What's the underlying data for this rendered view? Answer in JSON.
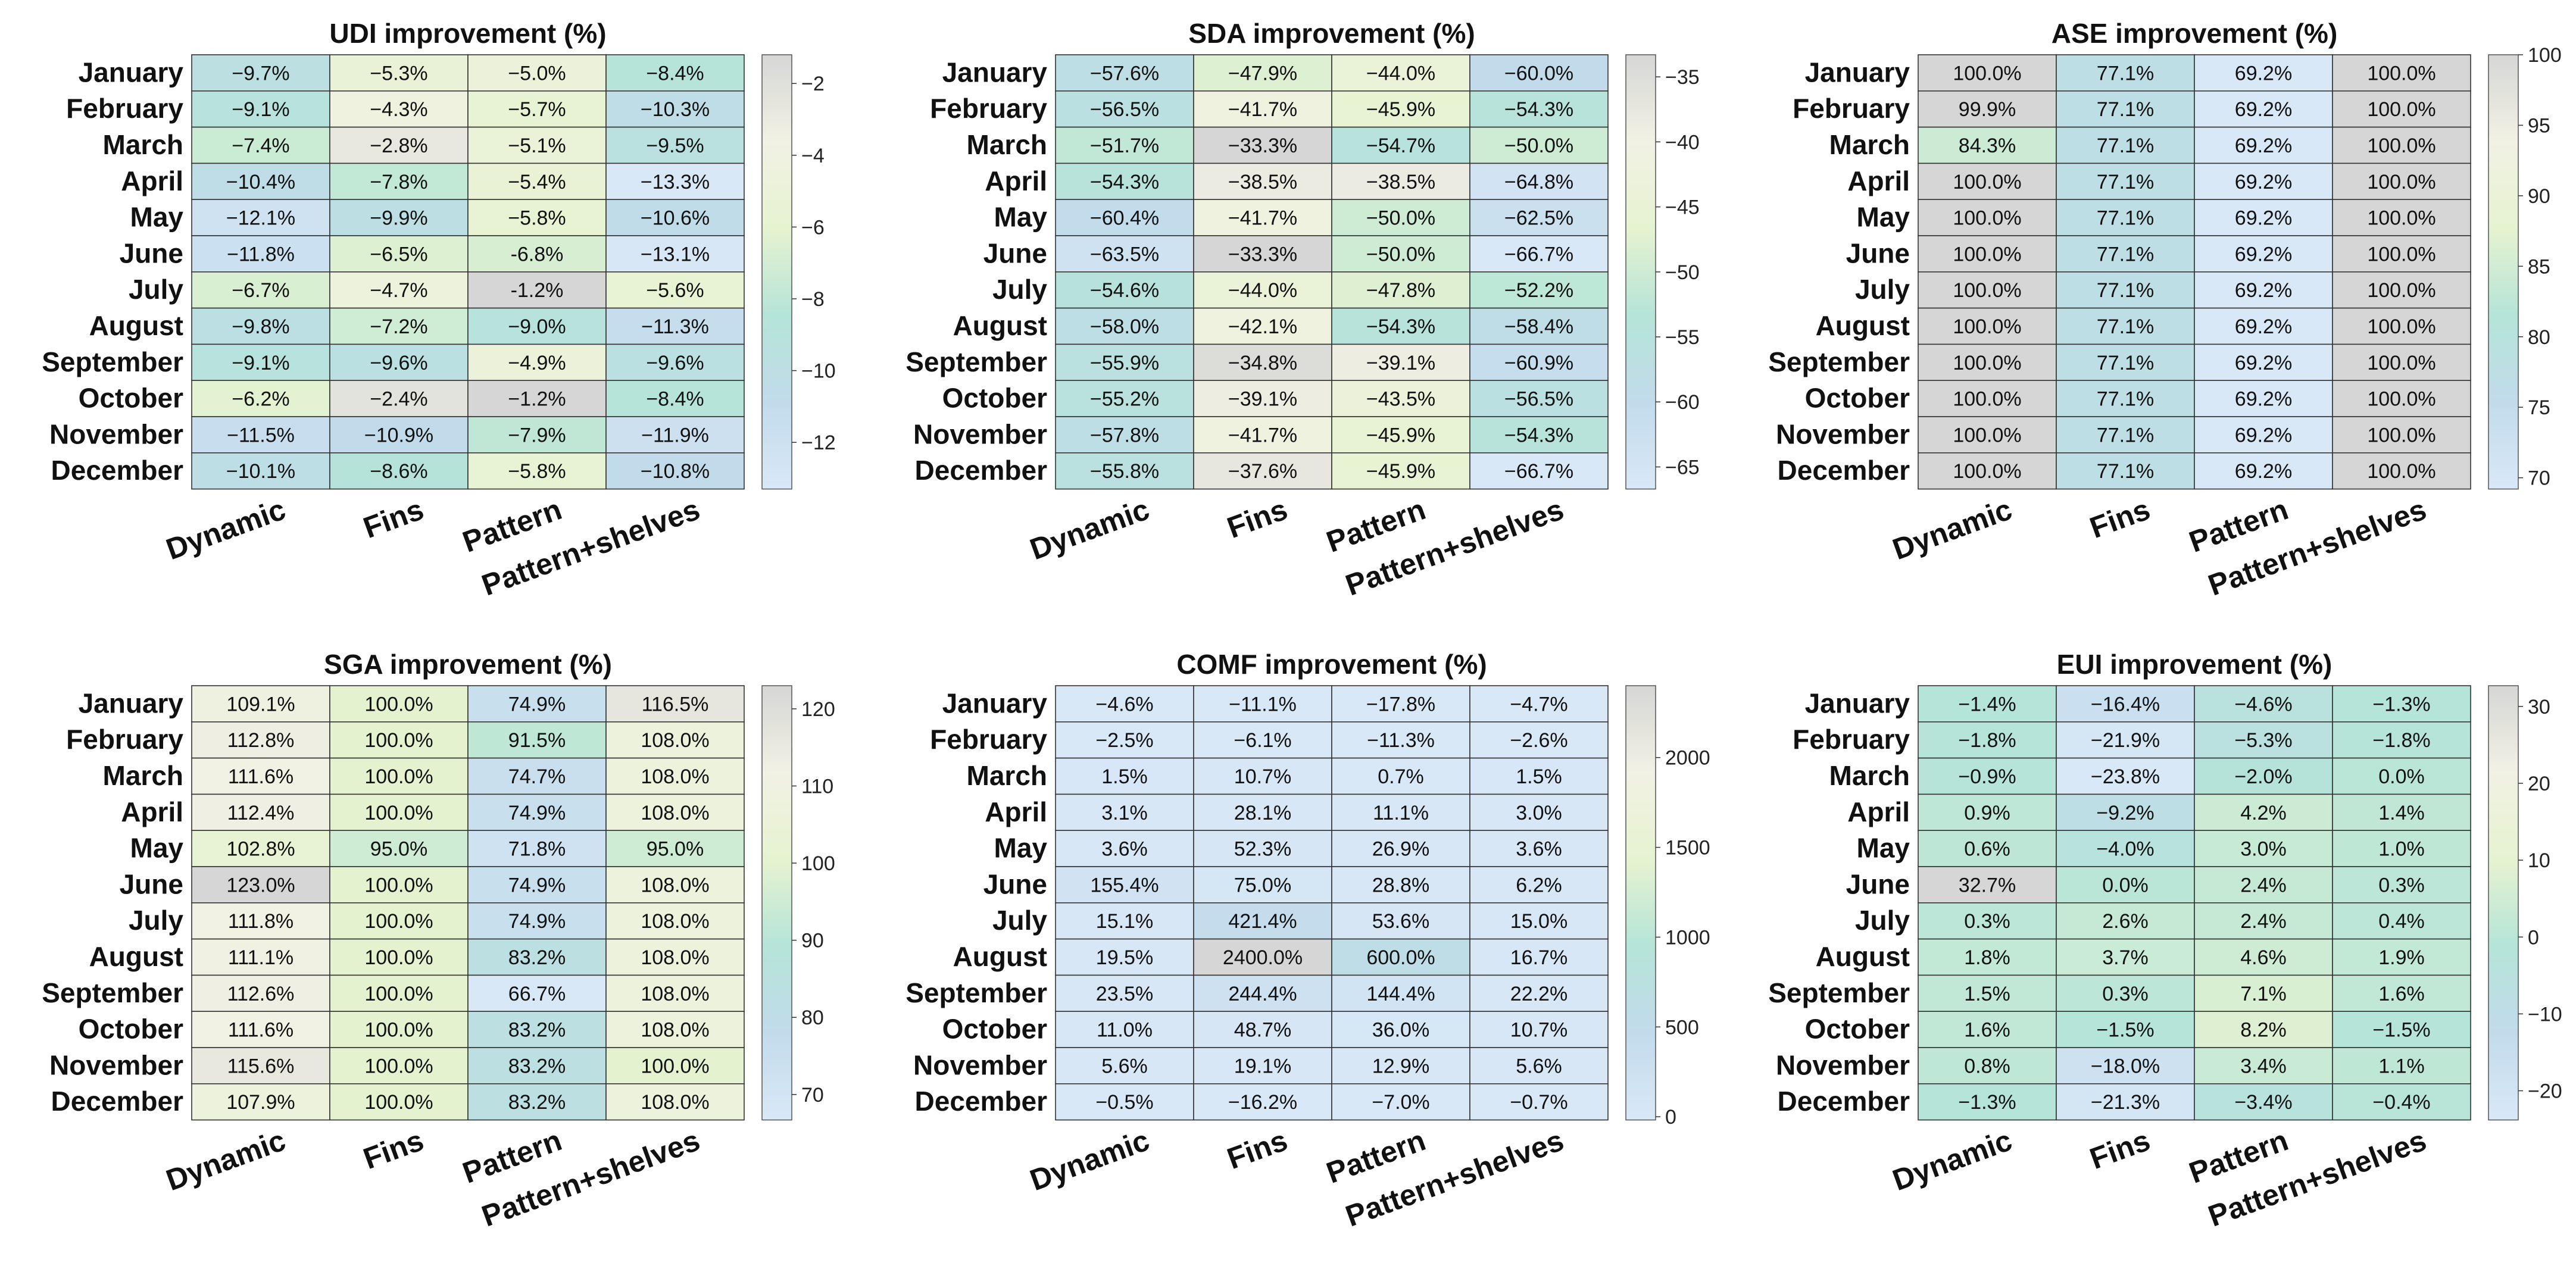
{
  "chart_data": [
    {
      "type": "heatmap",
      "title": "UDI improvement (%)",
      "rows": [
        "January",
        "February",
        "March",
        "April",
        "May",
        "June",
        "July",
        "August",
        "September",
        "October",
        "November",
        "December"
      ],
      "columns": [
        "Dynamic",
        "Fins",
        "Pattern",
        "Pattern+shelves"
      ],
      "values": [
        [
          -9.7,
          -5.3,
          -5.0,
          -8.4
        ],
        [
          -9.1,
          -4.3,
          -5.7,
          -10.3
        ],
        [
          -7.4,
          -2.8,
          -5.1,
          -9.5
        ],
        [
          -10.4,
          -7.8,
          -5.4,
          -13.3
        ],
        [
          -12.1,
          -9.9,
          -5.8,
          -10.6
        ],
        [
          -11.8,
          -6.5,
          -6.8,
          -13.1
        ],
        [
          -6.7,
          -4.7,
          -1.2,
          -5.6
        ],
        [
          -9.8,
          -7.2,
          -9.0,
          -11.3
        ],
        [
          -9.1,
          -9.6,
          -4.9,
          -9.6
        ],
        [
          -6.2,
          -2.4,
          -1.2,
          -8.4
        ],
        [
          -11.5,
          -10.9,
          -7.9,
          -11.9
        ],
        [
          -10.1,
          -8.6,
          -5.8,
          -10.8
        ]
      ],
      "labels": [
        [
          "−9.7%",
          "−5.3%",
          "−5.0%",
          "−8.4%"
        ],
        [
          "−9.1%",
          "−4.3%",
          "−5.7%",
          "−10.3%"
        ],
        [
          "−7.4%",
          "−2.8%",
          "−5.1%",
          "−9.5%"
        ],
        [
          "−10.4%",
          "−7.8%",
          "−5.4%",
          "−13.3%"
        ],
        [
          "−12.1%",
          "−9.9%",
          "−5.8%",
          "−10.6%"
        ],
        [
          "−11.8%",
          "−6.5%",
          "-6.8%",
          "−13.1%"
        ],
        [
          "−6.7%",
          "−4.7%",
          "-1.2%",
          "−5.6%"
        ],
        [
          "−9.8%",
          "−7.2%",
          "−9.0%",
          "−11.3%"
        ],
        [
          "−9.1%",
          "−9.6%",
          "−4.9%",
          "−9.6%"
        ],
        [
          "−6.2%",
          "−2.4%",
          "−1.2%",
          "−8.4%"
        ],
        [
          "−11.5%",
          "−10.9%",
          "−7.9%",
          "−11.9%"
        ],
        [
          "−10.1%",
          "−8.6%",
          "−5.8%",
          "−10.8%"
        ]
      ],
      "colorbar": {
        "range": [
          -13.3,
          -1.2
        ],
        "ticks": [
          -2,
          -4,
          -6,
          -8,
          -10,
          -12
        ],
        "tick_labels": [
          "−2",
          "−4",
          "−6",
          "−8",
          "−10",
          "−12"
        ]
      }
    },
    {
      "type": "heatmap",
      "title": "SDA improvement (%)",
      "rows": [
        "January",
        "February",
        "March",
        "April",
        "May",
        "June",
        "July",
        "August",
        "September",
        "October",
        "November",
        "December"
      ],
      "columns": [
        "Dynamic",
        "Fins",
        "Pattern",
        "Pattern+shelves"
      ],
      "values": [
        [
          -57.6,
          -47.9,
          -44.0,
          -60.0
        ],
        [
          -56.5,
          -41.7,
          -45.9,
          -54.3
        ],
        [
          -51.7,
          -33.3,
          -54.7,
          -50.0
        ],
        [
          -54.3,
          -38.5,
          -38.5,
          -64.8
        ],
        [
          -60.4,
          -41.7,
          -50.0,
          -62.5
        ],
        [
          -63.5,
          -33.3,
          -50.0,
          -66.7
        ],
        [
          -54.6,
          -44.0,
          -47.8,
          -52.2
        ],
        [
          -58.0,
          -42.1,
          -54.3,
          -58.4
        ],
        [
          -55.9,
          -34.8,
          -39.1,
          -60.9
        ],
        [
          -55.2,
          -39.1,
          -43.5,
          -56.5
        ],
        [
          -57.8,
          -41.7,
          -45.9,
          -54.3
        ],
        [
          -55.8,
          -37.6,
          -45.9,
          -66.7
        ]
      ],
      "labels": [
        [
          "−57.6%",
          "−47.9%",
          "−44.0%",
          "−60.0%"
        ],
        [
          "−56.5%",
          "−41.7%",
          "−45.9%",
          "−54.3%"
        ],
        [
          "−51.7%",
          "−33.3%",
          "−54.7%",
          "−50.0%"
        ],
        [
          "−54.3%",
          "−38.5%",
          "−38.5%",
          "−64.8%"
        ],
        [
          "−60.4%",
          "−41.7%",
          "−50.0%",
          "−62.5%"
        ],
        [
          "−63.5%",
          "−33.3%",
          "−50.0%",
          "−66.7%"
        ],
        [
          "−54.6%",
          "−44.0%",
          "−47.8%",
          "−52.2%"
        ],
        [
          "−58.0%",
          "−42.1%",
          "−54.3%",
          "−58.4%"
        ],
        [
          "−55.9%",
          "−34.8%",
          "−39.1%",
          "−60.9%"
        ],
        [
          "−55.2%",
          "−39.1%",
          "−43.5%",
          "−56.5%"
        ],
        [
          "−57.8%",
          "−41.7%",
          "−45.9%",
          "−54.3%"
        ],
        [
          "−55.8%",
          "−37.6%",
          "−45.9%",
          "−66.7%"
        ]
      ],
      "colorbar": {
        "range": [
          -66.7,
          -33.3
        ],
        "ticks": [
          -35,
          -40,
          -45,
          -50,
          -55,
          -60,
          -65
        ],
        "tick_labels": [
          "−35",
          "−40",
          "−45",
          "−50",
          "−55",
          "−60",
          "−65"
        ]
      }
    },
    {
      "type": "heatmap",
      "title": "ASE improvement (%)",
      "rows": [
        "January",
        "February",
        "March",
        "April",
        "May",
        "June",
        "July",
        "August",
        "September",
        "October",
        "November",
        "December"
      ],
      "columns": [
        "Dynamic",
        "Fins",
        "Pattern",
        "Pattern+shelves"
      ],
      "values": [
        [
          100.0,
          77.1,
          69.2,
          100.0
        ],
        [
          99.9,
          77.1,
          69.2,
          100.0
        ],
        [
          84.3,
          77.1,
          69.2,
          100.0
        ],
        [
          100.0,
          77.1,
          69.2,
          100.0
        ],
        [
          100.0,
          77.1,
          69.2,
          100.0
        ],
        [
          100.0,
          77.1,
          69.2,
          100.0
        ],
        [
          100.0,
          77.1,
          69.2,
          100.0
        ],
        [
          100.0,
          77.1,
          69.2,
          100.0
        ],
        [
          100.0,
          77.1,
          69.2,
          100.0
        ],
        [
          100.0,
          77.1,
          69.2,
          100.0
        ],
        [
          100.0,
          77.1,
          69.2,
          100.0
        ],
        [
          100.0,
          77.1,
          69.2,
          100.0
        ]
      ],
      "labels": [
        [
          "100.0%",
          "77.1%",
          "69.2%",
          "100.0%"
        ],
        [
          "99.9%",
          "77.1%",
          "69.2%",
          "100.0%"
        ],
        [
          "84.3%",
          "77.1%",
          "69.2%",
          "100.0%"
        ],
        [
          "100.0%",
          "77.1%",
          "69.2%",
          "100.0%"
        ],
        [
          "100.0%",
          "77.1%",
          "69.2%",
          "100.0%"
        ],
        [
          "100.0%",
          "77.1%",
          "69.2%",
          "100.0%"
        ],
        [
          "100.0%",
          "77.1%",
          "69.2%",
          "100.0%"
        ],
        [
          "100.0%",
          "77.1%",
          "69.2%",
          "100.0%"
        ],
        [
          "100.0%",
          "77.1%",
          "69.2%",
          "100.0%"
        ],
        [
          "100.0%",
          "77.1%",
          "69.2%",
          "100.0%"
        ],
        [
          "100.0%",
          "77.1%",
          "69.2%",
          "100.0%"
        ],
        [
          "100.0%",
          "77.1%",
          "69.2%",
          "100.0%"
        ]
      ],
      "colorbar": {
        "range": [
          69.2,
          100.0
        ],
        "ticks": [
          100,
          95,
          90,
          85,
          80,
          75,
          70
        ],
        "tick_labels": [
          "100",
          "95",
          "90",
          "85",
          "80",
          "75",
          "70"
        ]
      }
    },
    {
      "type": "heatmap",
      "title": "SGA improvement (%)",
      "rows": [
        "January",
        "February",
        "March",
        "April",
        "May",
        "June",
        "July",
        "August",
        "September",
        "October",
        "November",
        "December"
      ],
      "columns": [
        "Dynamic",
        "Fins",
        "Pattern",
        "Pattern+shelves"
      ],
      "values": [
        [
          109.1,
          100.0,
          74.9,
          116.5
        ],
        [
          112.8,
          100.0,
          91.5,
          108.0
        ],
        [
          111.6,
          100.0,
          74.7,
          108.0
        ],
        [
          112.4,
          100.0,
          74.9,
          108.0
        ],
        [
          102.8,
          95.0,
          71.8,
          95.0
        ],
        [
          123.0,
          100.0,
          74.9,
          108.0
        ],
        [
          111.8,
          100.0,
          74.9,
          108.0
        ],
        [
          111.1,
          100.0,
          83.2,
          108.0
        ],
        [
          112.6,
          100.0,
          66.7,
          108.0
        ],
        [
          111.6,
          100.0,
          83.2,
          108.0
        ],
        [
          115.6,
          100.0,
          83.2,
          100.0
        ],
        [
          107.9,
          100.0,
          83.2,
          108.0
        ]
      ],
      "labels": [
        [
          "109.1%",
          "100.0%",
          "74.9%",
          "116.5%"
        ],
        [
          "112.8%",
          "100.0%",
          "91.5%",
          "108.0%"
        ],
        [
          "111.6%",
          "100.0%",
          "74.7%",
          "108.0%"
        ],
        [
          "112.4%",
          "100.0%",
          "74.9%",
          "108.0%"
        ],
        [
          "102.8%",
          "95.0%",
          "71.8%",
          "95.0%"
        ],
        [
          "123.0%",
          "100.0%",
          "74.9%",
          "108.0%"
        ],
        [
          "111.8%",
          "100.0%",
          "74.9%",
          "108.0%"
        ],
        [
          "111.1%",
          "100.0%",
          "83.2%",
          "108.0%"
        ],
        [
          "112.6%",
          "100.0%",
          "66.7%",
          "108.0%"
        ],
        [
          "111.6%",
          "100.0%",
          "83.2%",
          "108.0%"
        ],
        [
          "115.6%",
          "100.0%",
          "83.2%",
          "100.0%"
        ],
        [
          "107.9%",
          "100.0%",
          "83.2%",
          "108.0%"
        ]
      ],
      "colorbar": {
        "range": [
          66.7,
          123.0
        ],
        "ticks": [
          120,
          110,
          100,
          90,
          80,
          70
        ],
        "tick_labels": [
          "120",
          "110",
          "100",
          "90",
          "80",
          "70"
        ]
      }
    },
    {
      "type": "heatmap",
      "title": "COMF improvement (%)",
      "rows": [
        "January",
        "February",
        "March",
        "April",
        "May",
        "June",
        "July",
        "August",
        "September",
        "October",
        "November",
        "December"
      ],
      "columns": [
        "Dynamic",
        "Fins",
        "Pattern",
        "Pattern+shelves"
      ],
      "values": [
        [
          -4.6,
          -11.1,
          -17.8,
          -4.7
        ],
        [
          -2.5,
          -6.1,
          -11.3,
          -2.6
        ],
        [
          1.5,
          10.7,
          0.7,
          1.5
        ],
        [
          3.1,
          28.1,
          11.1,
          3.0
        ],
        [
          3.6,
          52.3,
          26.9,
          3.6
        ],
        [
          155.4,
          75.0,
          28.8,
          6.2
        ],
        [
          15.1,
          421.4,
          53.6,
          15.0
        ],
        [
          19.5,
          2400.0,
          600.0,
          16.7
        ],
        [
          23.5,
          244.4,
          144.4,
          22.2
        ],
        [
          11.0,
          48.7,
          36.0,
          10.7
        ],
        [
          5.6,
          19.1,
          12.9,
          5.6
        ],
        [
          -0.5,
          -16.2,
          -7.0,
          -0.7
        ]
      ],
      "labels": [
        [
          "−4.6%",
          "−11.1%",
          "−17.8%",
          "−4.7%"
        ],
        [
          "−2.5%",
          "−6.1%",
          "−11.3%",
          "−2.6%"
        ],
        [
          "1.5%",
          "10.7%",
          "0.7%",
          "1.5%"
        ],
        [
          "3.1%",
          "28.1%",
          "11.1%",
          "3.0%"
        ],
        [
          "3.6%",
          "52.3%",
          "26.9%",
          "3.6%"
        ],
        [
          "155.4%",
          "75.0%",
          "28.8%",
          "6.2%"
        ],
        [
          "15.1%",
          "421.4%",
          "53.6%",
          "15.0%"
        ],
        [
          "19.5%",
          "2400.0%",
          "600.0%",
          "16.7%"
        ],
        [
          "23.5%",
          "244.4%",
          "144.4%",
          "22.2%"
        ],
        [
          "11.0%",
          "48.7%",
          "36.0%",
          "10.7%"
        ],
        [
          "5.6%",
          "19.1%",
          "12.9%",
          "5.6%"
        ],
        [
          "−0.5%",
          "−16.2%",
          "−7.0%",
          "−0.7%"
        ]
      ],
      "colorbar": {
        "range": [
          -17.8,
          2400.0
        ],
        "ticks": [
          2000,
          1500,
          1000,
          500,
          0
        ],
        "tick_labels": [
          "2000",
          "1500",
          "1000",
          "500",
          "0"
        ]
      }
    },
    {
      "type": "heatmap",
      "title": "EUI improvement (%)",
      "rows": [
        "January",
        "February",
        "March",
        "April",
        "May",
        "June",
        "July",
        "August",
        "September",
        "October",
        "November",
        "December"
      ],
      "columns": [
        "Dynamic",
        "Fins",
        "Pattern",
        "Pattern+shelves"
      ],
      "values": [
        [
          -1.4,
          -16.4,
          -4.6,
          -1.3
        ],
        [
          -1.8,
          -21.9,
          -5.3,
          -1.8
        ],
        [
          -0.9,
          -23.8,
          -2.0,
          0.0
        ],
        [
          0.9,
          -9.2,
          4.2,
          1.4
        ],
        [
          0.6,
          -4.0,
          3.0,
          1.0
        ],
        [
          32.7,
          0.0,
          2.4,
          0.3
        ],
        [
          0.3,
          2.6,
          2.4,
          0.4
        ],
        [
          1.8,
          3.7,
          4.6,
          1.9
        ],
        [
          1.5,
          0.3,
          7.1,
          1.6
        ],
        [
          1.6,
          -1.5,
          8.2,
          -1.5
        ],
        [
          0.8,
          -18.0,
          3.4,
          1.1
        ],
        [
          -1.3,
          -21.3,
          -3.4,
          -0.4
        ]
      ],
      "labels": [
        [
          "−1.4%",
          "−16.4%",
          "−4.6%",
          "−1.3%"
        ],
        [
          "−1.8%",
          "−21.9%",
          "−5.3%",
          "−1.8%"
        ],
        [
          "−0.9%",
          "−23.8%",
          "−2.0%",
          "0.0%"
        ],
        [
          "0.9%",
          "−9.2%",
          "4.2%",
          "1.4%"
        ],
        [
          "0.6%",
          "−4.0%",
          "3.0%",
          "1.0%"
        ],
        [
          "32.7%",
          "0.0%",
          "2.4%",
          "0.3%"
        ],
        [
          "0.3%",
          "2.6%",
          "2.4%",
          "0.4%"
        ],
        [
          "1.8%",
          "3.7%",
          "4.6%",
          "1.9%"
        ],
        [
          "1.5%",
          "0.3%",
          "7.1%",
          "1.6%"
        ],
        [
          "1.6%",
          "−1.5%",
          "8.2%",
          "−1.5%"
        ],
        [
          "0.8%",
          "−18.0%",
          "3.4%",
          "1.1%"
        ],
        [
          "−1.3%",
          "−21.3%",
          "−3.4%",
          "−0.4%"
        ]
      ],
      "colorbar": {
        "range": [
          -23.8,
          32.7
        ],
        "ticks": [
          30,
          20,
          10,
          0,
          -10,
          -20
        ],
        "tick_labels": [
          "30",
          "20",
          "10",
          "0",
          "−10",
          "−20"
        ]
      }
    }
  ],
  "colormap": [
    "#d9e8f7",
    "#c2dbeb",
    "#b5e4d8",
    "#e6f3d0",
    "#f1f1e4",
    "#d6d6d6"
  ]
}
